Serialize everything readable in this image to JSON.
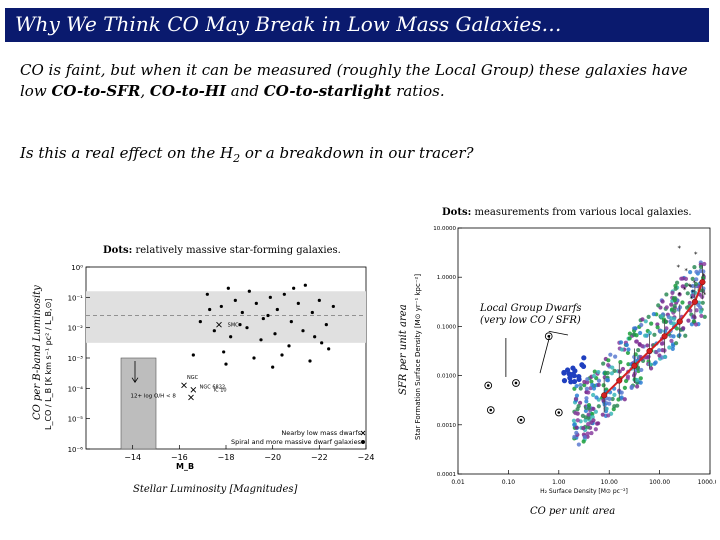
{
  "slide": {
    "title": "Why We Think CO May Break in Low Mass Galaxies…",
    "para1": {
      "t1": "CO is faint, but when it can be measured (roughly the Local Group) these galaxies have low ",
      "b1": "CO-to-SFR",
      "t2": ", ",
      "b2": "CO-to-HI",
      "t3": " and ",
      "b3": "CO-to-starlight",
      "t4": " ratios."
    },
    "para2": {
      "t1": "Is this a real effect on the H",
      "sub": "2",
      "t2": " or a breakdown in our tracer?"
    }
  },
  "left_plot": {
    "caption_bold": "Dots:",
    "caption_rest": " relatively massive star-forming galaxies.",
    "ylabel_outer": "CO per B-band Luminosity",
    "ylabel_inner": "L_CO / L_B [K km s⁻¹ pc² / L_B,⊙]",
    "xlabel_inner": "M_B",
    "xlabel_outer": "Stellar Luminosity [Magnitudes]",
    "legend1": "Nearby low mass dwarfs",
    "legend2": "Spiral and more massive dwarf galaxies",
    "limit_label": "12+ log O/H < 8",
    "label_smc": "SMC",
    "label_n6822": "NGC 6822",
    "label_ngc": "NGC",
    "label_ic10": "IC 10"
  },
  "right_plot": {
    "caption_bold": "Dots:",
    "caption_rest": " measurements from various local galaxies.",
    "ylabel_outer": "SFR per unit area",
    "ylabel_inner": "Star Formation Surface Density [M⊙ yr⁻¹ kpc⁻²]",
    "xlabel_inner": "H₂ Surface Density [M⊙ pc⁻²]",
    "xlabel_outer": "CO per unit area",
    "annotation_line1": "Local Group Dwarfs",
    "annotation_line2": "(very low CO / SFR)"
  },
  "chart_data": [
    {
      "type": "scatter",
      "title": "Dots: relatively massive star-forming galaxies.",
      "xlabel": "M_B",
      "ylabel": "L_CO / L_B",
      "xlim": [
        -12,
        -24
      ],
      "ylim_log10": [
        -6,
        0
      ],
      "x_ticks": [
        -14,
        -16,
        -18,
        -20,
        -22,
        -24
      ],
      "y_ticks": [
        "10⁰",
        "10⁻¹",
        "10⁻²",
        "10⁻³",
        "10⁻⁴",
        "10⁻⁵",
        "10⁻⁶"
      ],
      "band_log10": [
        -2.5,
        -0.8
      ],
      "median_log10": -1.6,
      "series": [
        {
          "name": "Spiral and more massive dwarf galaxies",
          "points": [
            [
              -17.2,
              -0.9
            ],
            [
              -17.8,
              -1.3
            ],
            [
              -18.1,
              -0.7
            ],
            [
              -18.4,
              -1.1
            ],
            [
              -18.7,
              -1.5
            ],
            [
              -19.0,
              -0.8
            ],
            [
              -19.3,
              -1.2
            ],
            [
              -19.6,
              -1.7
            ],
            [
              -19.9,
              -1.0
            ],
            [
              -20.2,
              -1.4
            ],
            [
              -20.5,
              -0.9
            ],
            [
              -20.8,
              -1.8
            ],
            [
              -21.1,
              -1.2
            ],
            [
              -21.4,
              -0.6
            ],
            [
              -21.7,
              -1.5
            ],
            [
              -22.0,
              -1.1
            ],
            [
              -22.3,
              -1.9
            ],
            [
              -22.6,
              -1.3
            ],
            [
              -16.9,
              -1.8
            ],
            [
              -17.5,
              -2.1
            ],
            [
              -18.2,
              -2.3
            ],
            [
              -18.9,
              -2.0
            ],
            [
              -19.5,
              -2.4
            ],
            [
              -20.1,
              -2.2
            ],
            [
              -20.7,
              -2.6
            ],
            [
              -21.3,
              -2.1
            ],
            [
              -22.1,
              -2.5
            ],
            [
              -16.6,
              -2.9
            ],
            [
              -17.9,
              -2.8
            ],
            [
              -19.2,
              -3.0
            ],
            [
              -20.4,
              -2.9
            ],
            [
              -21.6,
              -3.1
            ],
            [
              -22.4,
              -2.7
            ],
            [
              -18.6,
              -1.9
            ],
            [
              -19.8,
              -1.6
            ],
            [
              -20.9,
              -0.7
            ],
            [
              -21.8,
              -2.3
            ],
            [
              -17.3,
              -1.4
            ],
            [
              -18.0,
              -3.2
            ],
            [
              -20.0,
              -3.3
            ]
          ]
        },
        {
          "name": "Nearby low mass dwarfs",
          "points": [
            [
              -16.2,
              -3.9
            ],
            [
              -16.6,
              -4.05
            ],
            [
              -16.5,
              -4.3
            ],
            [
              -17.7,
              -1.9
            ]
          ]
        }
      ]
    },
    {
      "type": "scatter",
      "title": "Dots: measurements from various local galaxies.",
      "xlabel": "H₂ Surface Density [M⊙ pc⁻²]",
      "ylabel": "Star Formation Surface Density [M⊙ yr⁻¹ kpc⁻²]",
      "xlim_log10": [
        -2,
        3
      ],
      "ylim_log10": [
        -4,
        1
      ],
      "x_ticks": [
        "0.01",
        "0.10",
        "1.00",
        "10.00",
        "100.00",
        "1000.00"
      ],
      "y_ticks": [
        "10.0000",
        "1.0000",
        "0.1000",
        "0.0100",
        "0.0010",
        "0.0001"
      ],
      "trend_log10": [
        [
          0.9,
          -2.4
        ],
        [
          1.2,
          -2.1
        ],
        [
          1.5,
          -1.8
        ],
        [
          1.8,
          -1.5
        ],
        [
          2.1,
          -1.2
        ],
        [
          2.4,
          -0.9
        ],
        [
          2.7,
          -0.5
        ],
        [
          2.85,
          -0.1
        ]
      ],
      "local_group_dwarfs_log10": [
        [
          -1.4,
          -2.2
        ],
        [
          -0.85,
          -2.15
        ],
        [
          -0.2,
          -1.2
        ],
        [
          -1.35,
          -2.7
        ],
        [
          -0.75,
          -2.9
        ],
        [
          0.0,
          -2.75
        ]
      ]
    }
  ]
}
